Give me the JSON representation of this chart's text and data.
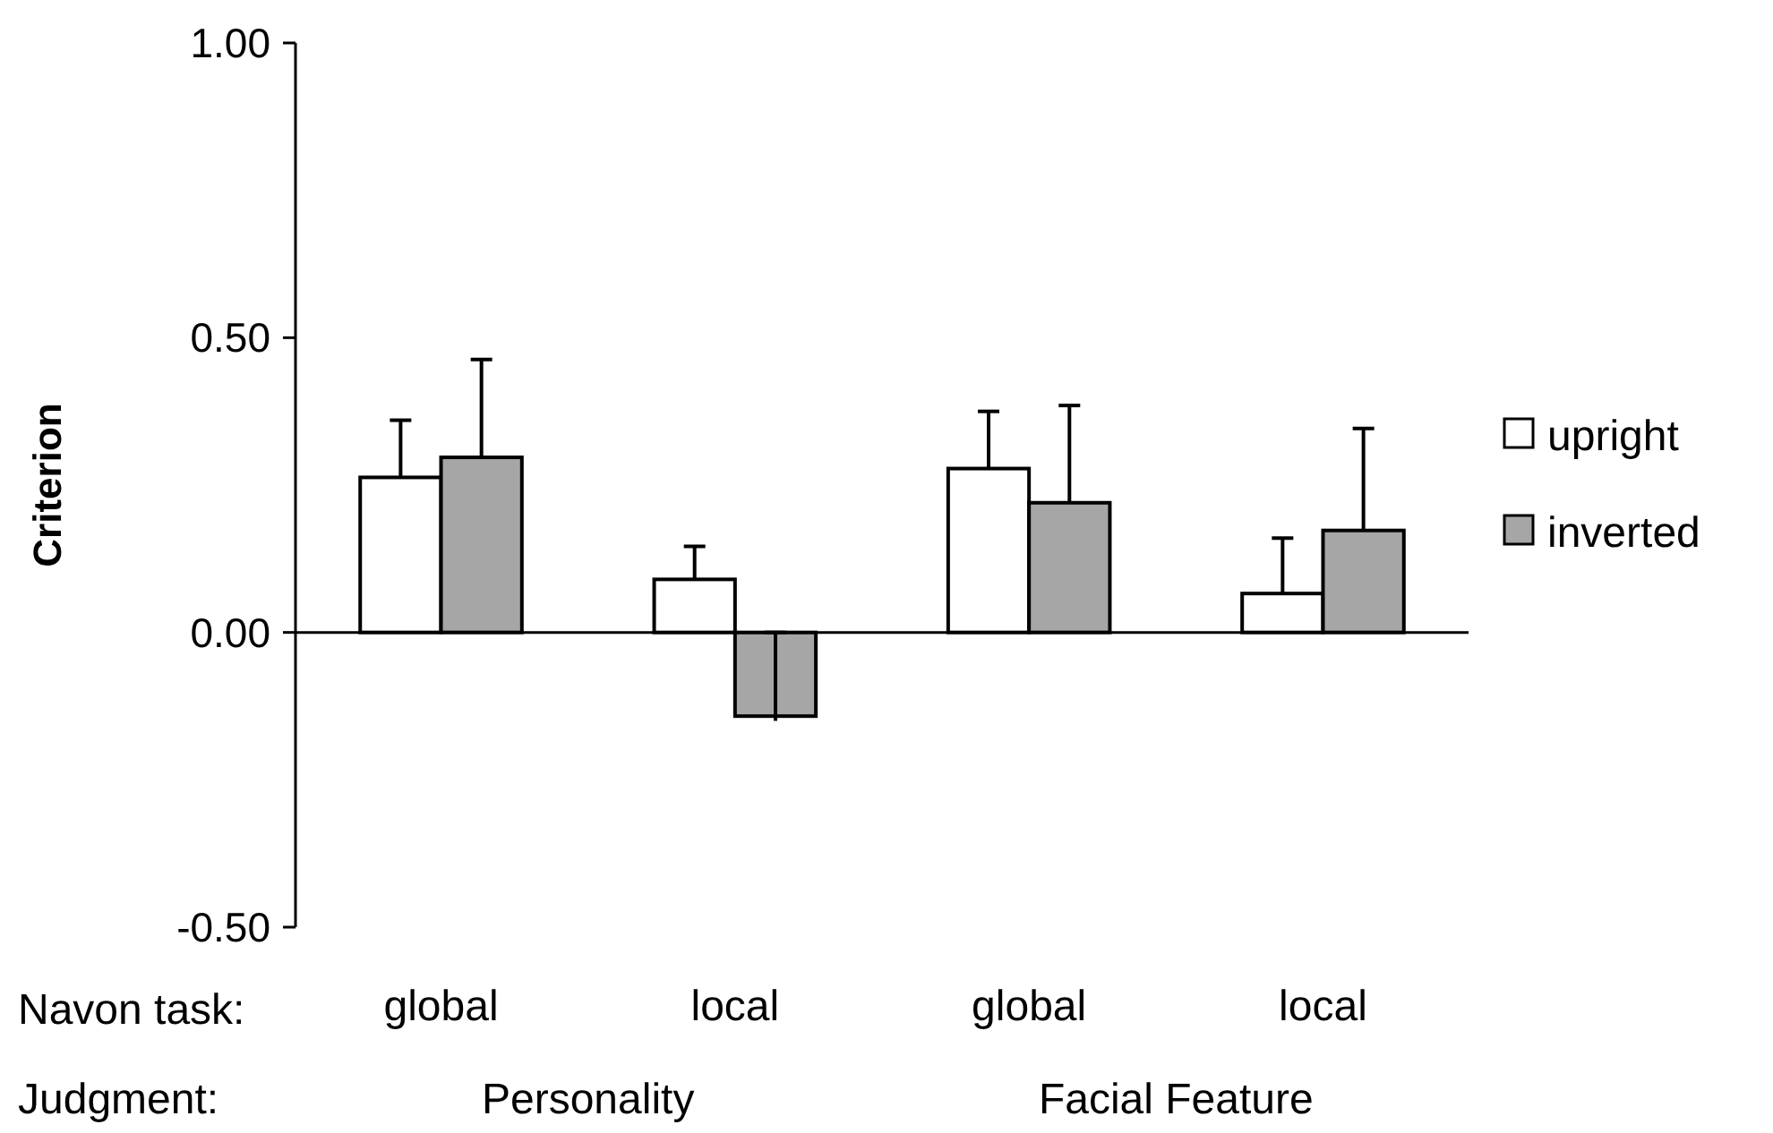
{
  "chart_data": {
    "type": "bar",
    "ylabel": "Criterion",
    "categories": [
      "global",
      "local",
      "global",
      "local"
    ],
    "series": [
      {
        "name": "upright",
        "color": "#ffffff",
        "values": [
          0.263,
          0.09,
          0.278,
          0.066
        ],
        "errors": [
          [
            0.263,
            0.36
          ],
          [
            0.09,
            0.146
          ],
          [
            0.278,
            0.375
          ],
          [
            0.066,
            0.16
          ]
        ]
      },
      {
        "name": "inverted",
        "color": "#a6a6a6",
        "values": [
          0.297,
          -0.142,
          0.22,
          0.173
        ],
        "errors": [
          [
            0.297,
            0.463
          ],
          [
            -0.15,
            0.0
          ],
          [
            0.22,
            0.385
          ],
          [
            0.173,
            0.346
          ]
        ]
      }
    ],
    "ylim": [
      -0.5,
      1.0
    ],
    "yticks": [
      {
        "value": -0.5,
        "label": "-0.50"
      },
      {
        "value": 0,
        "label": "0.00"
      },
      {
        "value": 0.5,
        "label": "0.50"
      },
      {
        "value": 1.0,
        "label": "1.00"
      }
    ],
    "legend": "right",
    "annotations": [
      "Navon task:",
      "Judgment:",
      "Personality",
      "Facial Feature"
    ]
  }
}
